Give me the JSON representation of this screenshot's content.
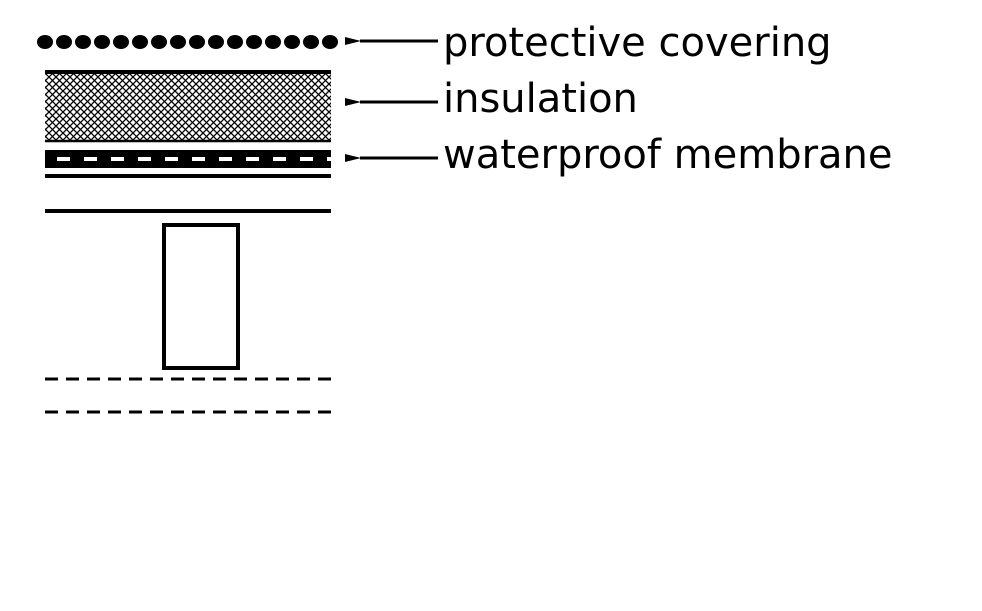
{
  "labels": {
    "protective_covering": "protective covering",
    "insulation": "insulation",
    "waterproof_membrane": "waterproof membrane"
  },
  "colors": {
    "ink": "#000000",
    "background": "#ffffff"
  }
}
